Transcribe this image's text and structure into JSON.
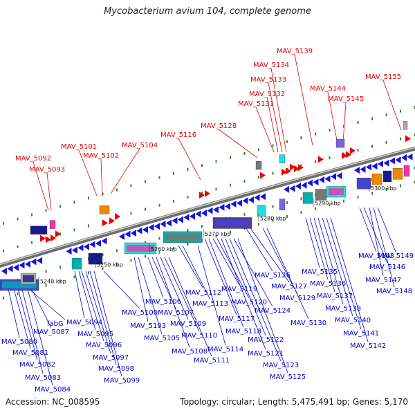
{
  "title": "Mycobacterium avium 104, complete genome",
  "footer": {
    "accession": "Accession: NC_008595",
    "topology": "Topology: circular; Length: 5,475,491 bp; Genes: 5,170"
  },
  "colors": {
    "forward_label": "#dd0000",
    "reverse_label": "#0000cc",
    "forward_arrow": "#ee0000",
    "reverse_arrow": "#1414dd",
    "backbone": "#888888",
    "tick": "#2a8a2a"
  },
  "scale_labels": [
    "5240 kbp",
    "5250 kbp",
    "5260 kbp",
    "5270 kbp",
    "5280 kbp",
    "5290 kbp",
    "5300 kbp"
  ],
  "forward_genes": [
    "MAV_5092",
    "MAV_5093",
    "MAV_5101",
    "MAV_5102",
    "MAV_5104",
    "MAV_5116",
    "MAV_5128",
    "MAV_5131",
    "MAV_5132",
    "MAV_5133",
    "MAV_5134",
    "MAV_5139",
    "MAV_5144",
    "MAV_5145",
    "MAV_5155"
  ],
  "reverse_genes": [
    "MAV_5080",
    "MAV_5081",
    "MAV_5082",
    "MAV_5083",
    "MAV_5084",
    "fabG",
    "MAV_5087",
    "MAV_5094",
    "MAV_5095",
    "MAV_5096",
    "MAV_5097",
    "MAV_5098",
    "MAV_5099",
    "MAV_5100",
    "MAV_5103",
    "MAV_5105",
    "MAV_5106",
    "MAV_5107",
    "MAV_5108",
    "MAV_5109",
    "MAV_5110",
    "MAV_5111",
    "MAV_5112",
    "MAV_5113",
    "MAV_5114",
    "MAV_5117",
    "MAV_5118",
    "MAV_5119",
    "MAV_5120",
    "MAV_5121",
    "MAV_5122",
    "MAV_5123",
    "MAV_5124",
    "MAV_5125",
    "MAV_5126",
    "MAV_5127",
    "MAV_5129",
    "MAV_5130",
    "MAV_5135",
    "MAV_5136",
    "MAV_5137",
    "MAV_5138",
    "MAV_5140",
    "MAV_5141",
    "MAV_5142",
    "MAV_5143",
    "MAV_5146",
    "MAV_5147",
    "MAV_5148",
    "MAV_5149"
  ]
}
